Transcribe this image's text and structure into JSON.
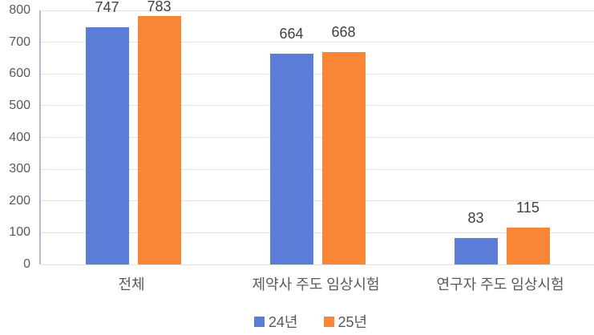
{
  "chart_data": {
    "type": "bar",
    "title": "",
    "categories": [
      "전체",
      "제약사 주도 임상시험",
      "연구자 주도 임상시험"
    ],
    "series": [
      {
        "name": "24년",
        "color": "#5B7DD8",
        "values": [
          747,
          664,
          83
        ]
      },
      {
        "name": "25년",
        "color": "#F98536",
        "values": [
          783,
          668,
          115
        ]
      }
    ],
    "ylim": [
      0,
      800
    ],
    "yticks": [
      0,
      100,
      200,
      300,
      400,
      500,
      600,
      700,
      800
    ],
    "grid": "horizontal",
    "legend_position": "bottom",
    "data_labels": true
  },
  "colors": {
    "bar_blue": "#5B7DD8",
    "bar_orange": "#F98536",
    "gridline": "#E2E2E2",
    "axis_line": "#AEBCD4",
    "tick_text": "#595959",
    "category_text": "#595959",
    "data_label_text": "#3F3F3F",
    "legend_text": "#595959",
    "background": "#FFFFFF"
  }
}
